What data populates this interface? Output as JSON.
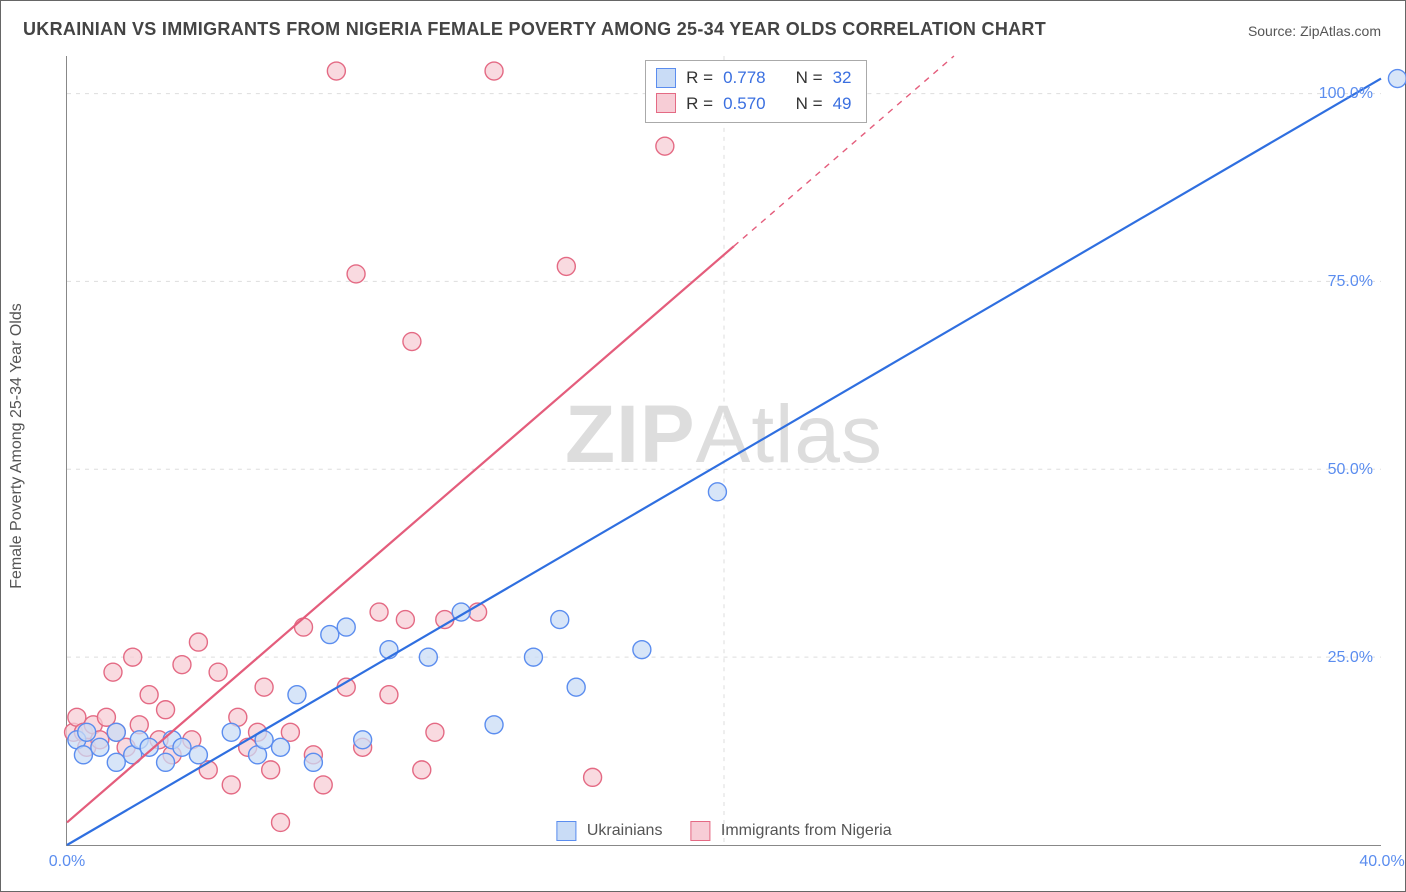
{
  "title": "UKRAINIAN VS IMMIGRANTS FROM NIGERIA FEMALE POVERTY AMONG 25-34 YEAR OLDS CORRELATION CHART",
  "source_prefix": "Source: ",
  "source_name": "ZipAtlas.com",
  "y_axis_label": "Female Poverty Among 25-34 Year Olds",
  "watermark_bold": "ZIP",
  "watermark_thin": "Atlas",
  "chart": {
    "type": "scatter",
    "xlim": [
      0,
      40
    ],
    "ylim": [
      0,
      105
    ],
    "x_ticks": [
      0,
      40
    ],
    "x_tick_labels": [
      "0.0%",
      "40.0%"
    ],
    "y_ticks": [
      25,
      50,
      75,
      100
    ],
    "y_tick_labels": [
      "25.0%",
      "50.0%",
      "75.0%",
      "100.0%"
    ],
    "grid_v_at": [
      20
    ],
    "background_color": "#ffffff",
    "grid_color": "#dddddd",
    "marker_radius": 9,
    "marker_stroke_width": 1.4,
    "line_width": 2.2,
    "series": [
      {
        "name": "Ukrainians",
        "fill": "#c9dcf6",
        "stroke": "#5b8def",
        "line_color": "#2f6fe0",
        "R": "0.778",
        "N": "32",
        "trend": {
          "x1": 0,
          "y1": 0,
          "x2": 40,
          "y2": 102,
          "dash_from_x": 40
        },
        "points": [
          [
            0.3,
            14
          ],
          [
            0.5,
            12
          ],
          [
            0.6,
            15
          ],
          [
            1.0,
            13
          ],
          [
            1.5,
            11
          ],
          [
            1.5,
            15
          ],
          [
            2.0,
            12
          ],
          [
            2.2,
            14
          ],
          [
            2.5,
            13
          ],
          [
            3.0,
            11
          ],
          [
            3.2,
            14
          ],
          [
            3.5,
            13
          ],
          [
            4.0,
            12
          ],
          [
            5.0,
            15
          ],
          [
            5.8,
            12
          ],
          [
            6.0,
            14
          ],
          [
            6.5,
            13
          ],
          [
            7.0,
            20
          ],
          [
            7.5,
            11
          ],
          [
            8.0,
            28
          ],
          [
            8.5,
            29
          ],
          [
            9.0,
            14
          ],
          [
            9.8,
            26
          ],
          [
            11.0,
            25
          ],
          [
            12.0,
            31
          ],
          [
            13.0,
            16
          ],
          [
            14.2,
            25
          ],
          [
            15.0,
            30
          ],
          [
            15.5,
            21
          ],
          [
            17.5,
            26
          ],
          [
            19.8,
            47
          ],
          [
            40.5,
            102
          ]
        ]
      },
      {
        "name": "Immigrants from Nigeria",
        "fill": "#f7cdd6",
        "stroke": "#e46a84",
        "line_color": "#e45d7c",
        "R": "0.570",
        "N": "49",
        "trend": {
          "x1": 0,
          "y1": 3,
          "x2": 27,
          "y2": 105,
          "dash_from_x": 20.3
        },
        "points": [
          [
            0.2,
            15
          ],
          [
            0.3,
            17
          ],
          [
            0.5,
            15
          ],
          [
            0.6,
            13
          ],
          [
            0.8,
            16
          ],
          [
            1.0,
            14
          ],
          [
            1.2,
            17
          ],
          [
            1.4,
            23
          ],
          [
            1.5,
            15
          ],
          [
            1.8,
            13
          ],
          [
            2.0,
            25
          ],
          [
            2.2,
            16
          ],
          [
            2.5,
            20
          ],
          [
            2.8,
            14
          ],
          [
            3.0,
            18
          ],
          [
            3.2,
            12
          ],
          [
            3.5,
            24
          ],
          [
            3.8,
            14
          ],
          [
            4.0,
            27
          ],
          [
            4.3,
            10
          ],
          [
            4.6,
            23
          ],
          [
            5.0,
            8
          ],
          [
            5.2,
            17
          ],
          [
            5.5,
            13
          ],
          [
            5.8,
            15
          ],
          [
            6.0,
            21
          ],
          [
            6.2,
            10
          ],
          [
            6.5,
            3
          ],
          [
            6.8,
            15
          ],
          [
            7.2,
            29
          ],
          [
            7.5,
            12
          ],
          [
            7.8,
            8
          ],
          [
            8.2,
            103
          ],
          [
            8.5,
            21
          ],
          [
            8.8,
            76
          ],
          [
            9.0,
            13
          ],
          [
            9.5,
            31
          ],
          [
            9.8,
            20
          ],
          [
            10.3,
            30
          ],
          [
            10.5,
            67
          ],
          [
            10.8,
            10
          ],
          [
            11.2,
            15
          ],
          [
            11.5,
            30
          ],
          [
            12.5,
            31
          ],
          [
            13.0,
            103
          ],
          [
            15.2,
            77
          ],
          [
            16.0,
            9
          ],
          [
            18.2,
            93
          ],
          [
            20.5,
            102
          ]
        ]
      }
    ]
  },
  "legend_bottom": [
    {
      "label": "Ukrainians",
      "fill": "#c9dcf6",
      "stroke": "#5b8def"
    },
    {
      "label": "Immigrants from Nigeria",
      "fill": "#f7cdd6",
      "stroke": "#e46a84"
    }
  ],
  "stats_labels": {
    "R": "R  =",
    "N": "N  ="
  }
}
